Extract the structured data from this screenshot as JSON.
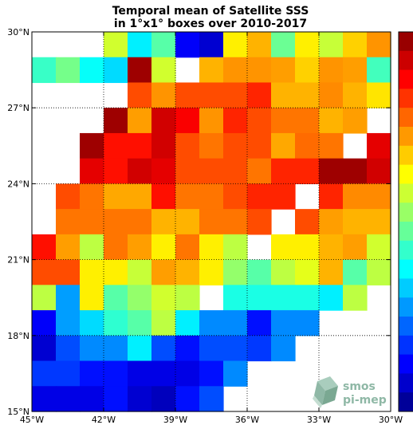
{
  "chart_data": {
    "type": "heatmap",
    "title": "Temporal mean of Satellite SSS",
    "subtitle": "in 1°x1° boxes over 2010-2017",
    "x_tick_labels": [
      "45°W",
      "42°W",
      "39°W",
      "36°W",
      "33°W",
      "30°W"
    ],
    "y_tick_labels": [
      "30°N",
      "27°N",
      "24°N",
      "21°N",
      "18°N",
      "15°N"
    ],
    "x_range": [
      -45,
      -30
    ],
    "y_range": [
      15,
      30
    ],
    "grid": true,
    "colormap": "jet",
    "colorbar_visible": true,
    "colorbar_placement": "right",
    "row_order": "north-to-south",
    "column_order": "west-to-east",
    "cell_size_deg": 1,
    "cell_value_scale": "normalized 0-1 position on colormap (colorbar tick labels not visible)",
    "cells": [
      [
        null,
        null,
        null,
        0.58,
        0.36,
        0.46,
        0.12,
        0.08,
        0.64,
        0.7,
        0.48,
        0.64,
        0.57,
        0.67,
        0.73
      ],
      [
        0.43,
        0.49,
        0.38,
        0.34,
        0.97,
        0.58,
        null,
        0.7,
        0.73,
        0.73,
        0.72,
        0.67,
        0.73,
        0.72,
        0.44
      ],
      [
        null,
        null,
        null,
        null,
        0.8,
        0.73,
        0.8,
        0.8,
        0.8,
        0.84,
        0.7,
        0.7,
        0.74,
        0.7,
        0.65
      ],
      [
        null,
        null,
        null,
        0.97,
        0.72,
        0.92,
        0.88,
        0.73,
        0.84,
        0.8,
        0.76,
        0.76,
        0.7,
        0.72,
        null
      ],
      [
        null,
        null,
        0.97,
        0.86,
        0.86,
        0.92,
        0.8,
        0.76,
        0.8,
        0.8,
        0.71,
        0.77,
        0.76,
        null,
        0.9
      ],
      [
        null,
        null,
        0.9,
        0.86,
        0.92,
        0.9,
        0.8,
        0.8,
        0.8,
        0.76,
        0.84,
        0.84,
        0.97,
        0.97,
        0.92
      ],
      [
        null,
        0.8,
        0.76,
        0.71,
        0.71,
        0.86,
        0.76,
        0.76,
        0.8,
        0.84,
        0.84,
        null,
        0.84,
        0.74,
        0.74
      ],
      [
        null,
        0.76,
        0.76,
        0.76,
        0.76,
        0.7,
        0.7,
        0.76,
        0.76,
        0.8,
        null,
        0.8,
        0.72,
        0.7,
        0.7
      ],
      [
        0.86,
        0.72,
        0.56,
        0.76,
        0.72,
        0.64,
        0.76,
        0.64,
        0.56,
        null,
        0.64,
        0.64,
        0.7,
        0.72,
        0.58
      ],
      [
        0.8,
        0.8,
        0.64,
        0.64,
        0.57,
        0.72,
        0.7,
        0.64,
        0.52,
        0.46,
        0.56,
        0.6,
        0.7,
        0.46,
        0.56
      ],
      [
        0.56,
        0.28,
        0.64,
        0.46,
        0.52,
        0.58,
        0.56,
        null,
        0.4,
        0.4,
        0.4,
        0.4,
        0.36,
        0.56,
        null
      ],
      [
        0.12,
        0.28,
        0.34,
        0.42,
        0.46,
        0.56,
        0.36,
        0.26,
        0.26,
        0.14,
        0.26,
        0.26,
        null,
        null,
        null
      ],
      [
        0.08,
        0.2,
        0.26,
        0.26,
        0.36,
        0.2,
        0.14,
        0.2,
        0.2,
        0.18,
        0.26,
        null,
        null,
        null,
        null
      ],
      [
        0.18,
        0.18,
        0.14,
        0.14,
        0.1,
        0.1,
        0.1,
        0.14,
        0.26,
        null,
        null,
        null,
        null,
        null,
        null
      ],
      [
        0.1,
        0.1,
        0.1,
        0.14,
        0.08,
        0.06,
        0.14,
        0.2,
        null,
        null,
        null,
        null,
        null,
        null,
        null
      ]
    ]
  },
  "logo": {
    "line1": "smos",
    "line2": "pi-mep",
    "color": "#8fb8a6"
  }
}
